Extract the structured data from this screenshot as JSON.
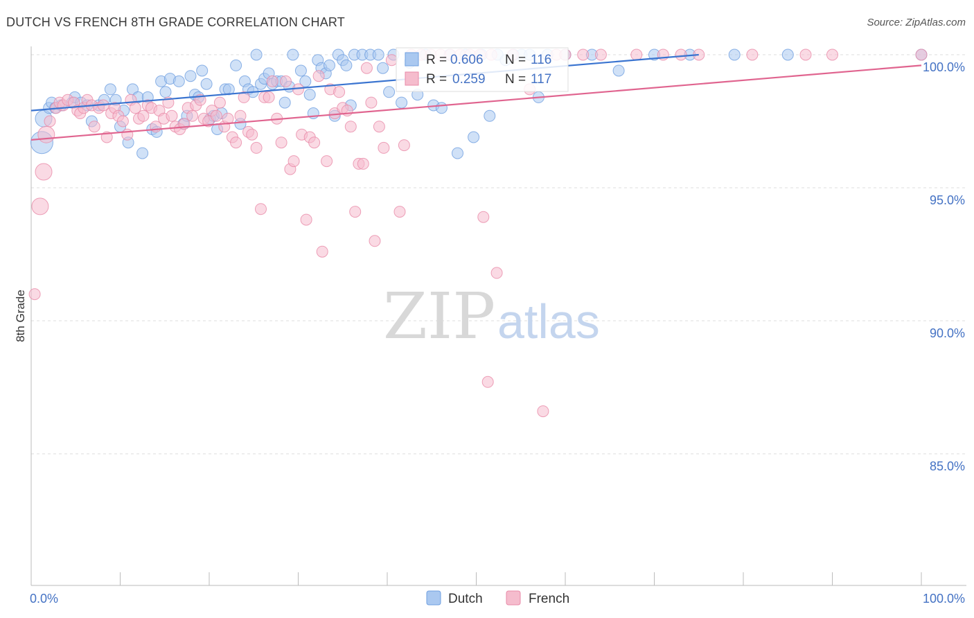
{
  "header": {
    "title": "DUTCH VS FRENCH 8TH GRADE CORRELATION CHART",
    "source": "Source: ZipAtlas.com"
  },
  "watermark": {
    "zip": "ZIP",
    "atlas": "atlas"
  },
  "legend_box": {
    "rows": [
      {
        "r_label": "R =",
        "r_value": "0.606",
        "n_label": "N =",
        "n_value": "116"
      },
      {
        "r_label": "R =",
        "r_value": "0.259",
        "n_label": "N =",
        "n_value": "117"
      }
    ]
  },
  "chart_data": {
    "type": "scatter",
    "title": "DUTCH VS FRENCH 8TH GRADE CORRELATION CHART",
    "xlabel": "",
    "ylabel": "8th Grade",
    "xlim": [
      0,
      100
    ],
    "ylim": [
      80,
      100.5
    ],
    "x_tick_labels": [
      "0.0%",
      "100.0%"
    ],
    "y_tick_labels": [
      {
        "value": 100,
        "label": "100.0%"
      },
      {
        "value": 95,
        "label": "95.0%"
      },
      {
        "value": 90,
        "label": "90.0%"
      },
      {
        "value": 85,
        "label": "85.0%"
      }
    ],
    "grid": true,
    "series": [
      {
        "name": "Dutch",
        "color": "#6f9fe0",
        "fill": "#aac8f0",
        "r": 0.606,
        "n": 116,
        "trend": {
          "x": [
            0,
            75
          ],
          "y": [
            97.9,
            100.0
          ]
        },
        "points": [
          [
            1.2,
            96.7,
            3
          ],
          [
            1.4,
            97.6,
            2
          ],
          [
            2,
            98.0,
            1
          ],
          [
            2.3,
            98.2,
            1
          ],
          [
            2.7,
            98.0,
            1
          ],
          [
            3.4,
            98.1,
            1
          ],
          [
            4.6,
            98.2,
            1
          ],
          [
            4.9,
            98.4,
            1
          ],
          [
            5.6,
            98.2,
            1
          ],
          [
            6.3,
            98.1,
            1
          ],
          [
            6.8,
            97.5,
            1
          ],
          [
            7.6,
            98.1,
            1
          ],
          [
            8.2,
            98.3,
            1
          ],
          [
            8.9,
            98.7,
            1
          ],
          [
            9.5,
            98.3,
            1
          ],
          [
            10,
            97.3,
            1
          ],
          [
            10.4,
            97.9,
            1
          ],
          [
            10.9,
            96.7,
            1
          ],
          [
            11.4,
            98.7,
            1
          ],
          [
            12,
            98.4,
            1
          ],
          [
            12.5,
            96.3,
            1
          ],
          [
            13.1,
            98.4,
            1
          ],
          [
            13.6,
            97.2,
            1
          ],
          [
            14.1,
            97.1,
            1
          ],
          [
            14.6,
            99.0,
            1
          ],
          [
            15.1,
            98.6,
            1
          ],
          [
            15.6,
            99.1,
            1
          ],
          [
            16.6,
            99.0,
            1
          ],
          [
            17.1,
            97.4,
            1
          ],
          [
            17.5,
            97.7,
            1
          ],
          [
            17.9,
            99.2,
            1
          ],
          [
            18.4,
            98.5,
            1
          ],
          [
            18.8,
            98.4,
            1
          ],
          [
            19.2,
            99.4,
            1
          ],
          [
            19.7,
            98.9,
            1
          ],
          [
            20.1,
            97.6,
            1
          ],
          [
            20.5,
            97.7,
            1
          ],
          [
            20.9,
            97.2,
            1
          ],
          [
            21.4,
            97.8,
            1
          ],
          [
            21.8,
            98.7,
            1
          ],
          [
            22.2,
            98.7,
            1
          ],
          [
            23,
            99.6,
            1
          ],
          [
            23.5,
            97.4,
            1
          ],
          [
            24,
            99.0,
            1
          ],
          [
            24.4,
            98.7,
            1
          ],
          [
            24.9,
            98.6,
            1
          ],
          [
            25.3,
            100.0,
            1
          ],
          [
            25.8,
            98.9,
            1
          ],
          [
            26.2,
            99.1,
            1
          ],
          [
            26.7,
            99.3,
            1
          ],
          [
            27.1,
            98.9,
            1
          ],
          [
            27.6,
            99.0,
            1
          ],
          [
            28.1,
            99.0,
            1
          ],
          [
            28.5,
            98.2,
            1
          ],
          [
            29,
            98.8,
            1
          ],
          [
            29.4,
            100.0,
            1
          ],
          [
            30.3,
            99.4,
            1
          ],
          [
            30.8,
            99.0,
            1
          ],
          [
            31.3,
            98.5,
            1
          ],
          [
            31.7,
            97.8,
            1
          ],
          [
            32.2,
            99.8,
            1
          ],
          [
            32.6,
            99.5,
            1
          ],
          [
            33.1,
            99.3,
            1
          ],
          [
            33.5,
            99.6,
            1
          ],
          [
            34.1,
            97.7,
            1
          ],
          [
            34.5,
            100.0,
            1
          ],
          [
            35,
            99.8,
            1
          ],
          [
            35.4,
            99.6,
            1
          ],
          [
            35.9,
            98.1,
            1
          ],
          [
            36.3,
            100.0,
            1
          ],
          [
            37.2,
            100.0,
            1
          ],
          [
            38.1,
            100.0,
            1
          ],
          [
            39,
            100.0,
            1
          ],
          [
            39.5,
            99.5,
            1
          ],
          [
            40.2,
            98.6,
            1
          ],
          [
            40.7,
            100.0,
            1
          ],
          [
            41.6,
            98.2,
            1
          ],
          [
            42.5,
            99.7,
            1
          ],
          [
            43.4,
            98.5,
            1
          ],
          [
            44.3,
            100.0,
            1
          ],
          [
            45.2,
            98.1,
            1
          ],
          [
            46.1,
            98.0,
            1
          ],
          [
            47,
            100.0,
            1
          ],
          [
            47.9,
            96.3,
            1
          ],
          [
            48.8,
            100.0,
            1
          ],
          [
            49.7,
            96.9,
            1
          ],
          [
            50.6,
            100.0,
            1
          ],
          [
            51.5,
            97.7,
            1
          ],
          [
            52.4,
            100.0,
            1
          ],
          [
            53.3,
            99.8,
            1
          ],
          [
            54.2,
            100.0,
            1
          ],
          [
            55.1,
            100.0,
            1
          ],
          [
            56,
            100.0,
            1
          ],
          [
            57,
            98.4,
            1
          ],
          [
            58,
            100.0,
            1
          ],
          [
            60,
            100.0,
            1
          ],
          [
            63,
            100.0,
            1
          ],
          [
            66,
            99.4,
            1
          ],
          [
            70,
            100.0,
            1
          ],
          [
            74,
            100.0,
            1
          ],
          [
            79,
            100.0,
            1
          ],
          [
            85,
            100.0,
            1
          ],
          [
            100,
            100.0,
            1
          ]
        ]
      },
      {
        "name": "French",
        "color": "#e98aa8",
        "fill": "#f5bccd",
        "r": 0.259,
        "n": 117,
        "trend": {
          "x": [
            0,
            100
          ],
          "y": [
            96.8,
            99.6
          ]
        },
        "points": [
          [
            0.4,
            91.0,
            1
          ],
          [
            1,
            94.3,
            2
          ],
          [
            1.4,
            95.6,
            2
          ],
          [
            1.7,
            97.0,
            2
          ],
          [
            2.1,
            97.5,
            1
          ],
          [
            2.8,
            98.0,
            1
          ],
          [
            3.2,
            98.2,
            1
          ],
          [
            3.6,
            98.1,
            1
          ],
          [
            4.1,
            98.3,
            1
          ],
          [
            4.8,
            98.2,
            1
          ],
          [
            5.2,
            97.9,
            1
          ],
          [
            5.5,
            97.8,
            1
          ],
          [
            5.9,
            98.0,
            1
          ],
          [
            6.3,
            98.3,
            1
          ],
          [
            6.8,
            98.1,
            1
          ],
          [
            7.1,
            97.3,
            1
          ],
          [
            7.6,
            98.0,
            1
          ],
          [
            8.1,
            98.1,
            1
          ],
          [
            8.5,
            96.9,
            1
          ],
          [
            9,
            97.8,
            1
          ],
          [
            9.4,
            98.0,
            1
          ],
          [
            9.8,
            97.7,
            1
          ],
          [
            10.3,
            97.5,
            1
          ],
          [
            10.8,
            97.0,
            1
          ],
          [
            11.2,
            98.3,
            1
          ],
          [
            11.7,
            98.0,
            1
          ],
          [
            12.1,
            97.6,
            1
          ],
          [
            12.6,
            97.7,
            1
          ],
          [
            13.1,
            98.1,
            1
          ],
          [
            13.5,
            98.0,
            1
          ],
          [
            14,
            97.3,
            1
          ],
          [
            14.4,
            97.9,
            1
          ],
          [
            14.9,
            97.6,
            1
          ],
          [
            15.4,
            98.2,
            1
          ],
          [
            15.8,
            97.7,
            1
          ],
          [
            16.2,
            97.3,
            1
          ],
          [
            16.7,
            97.2,
            1
          ],
          [
            17.2,
            97.4,
            1
          ],
          [
            17.6,
            98.0,
            1
          ],
          [
            18.1,
            97.7,
            1
          ],
          [
            18.5,
            98.1,
            1
          ],
          [
            19,
            98.3,
            1
          ],
          [
            19.4,
            97.6,
            1
          ],
          [
            19.9,
            97.5,
            1
          ],
          [
            20.3,
            97.9,
            1
          ],
          [
            20.8,
            97.7,
            1
          ],
          [
            21.2,
            98.2,
            1
          ],
          [
            21.7,
            97.3,
            1
          ],
          [
            22.1,
            97.6,
            1
          ],
          [
            22.6,
            96.9,
            1
          ],
          [
            23,
            96.7,
            1
          ],
          [
            23.5,
            97.7,
            1
          ],
          [
            23.9,
            98.4,
            1
          ],
          [
            24.4,
            97.1,
            1
          ],
          [
            24.8,
            97.0,
            1
          ],
          [
            25.3,
            96.5,
            1
          ],
          [
            25.8,
            94.2,
            1
          ],
          [
            26.2,
            98.4,
            1
          ],
          [
            26.7,
            98.4,
            1
          ],
          [
            27.1,
            99.0,
            1
          ],
          [
            27.6,
            97.6,
            1
          ],
          [
            28.1,
            96.7,
            1
          ],
          [
            28.6,
            99.0,
            1
          ],
          [
            29.1,
            95.7,
            1
          ],
          [
            29.5,
            96.0,
            1
          ],
          [
            30,
            98.7,
            1
          ],
          [
            30.4,
            97.0,
            1
          ],
          [
            30.9,
            93.8,
            1
          ],
          [
            31.3,
            96.9,
            1
          ],
          [
            31.8,
            96.7,
            1
          ],
          [
            32.3,
            99.2,
            1
          ],
          [
            32.7,
            92.6,
            1
          ],
          [
            33.2,
            96.0,
            1
          ],
          [
            33.6,
            98.7,
            1
          ],
          [
            34.1,
            97.8,
            1
          ],
          [
            34.6,
            98.6,
            1
          ],
          [
            35,
            98.0,
            1
          ],
          [
            35.5,
            97.9,
            1
          ],
          [
            35.9,
            97.3,
            1
          ],
          [
            36.4,
            94.1,
            1
          ],
          [
            36.8,
            95.9,
            1
          ],
          [
            37.3,
            95.9,
            1
          ],
          [
            37.7,
            99.5,
            1
          ],
          [
            38.2,
            98.2,
            1
          ],
          [
            38.6,
            93.0,
            1
          ],
          [
            39.1,
            97.3,
            1
          ],
          [
            39.6,
            96.5,
            1
          ],
          [
            40.5,
            99.8,
            1
          ],
          [
            41.4,
            94.1,
            1
          ],
          [
            41.9,
            96.6,
            1
          ],
          [
            42.7,
            100.0,
            1
          ],
          [
            43.8,
            100.0,
            1
          ],
          [
            44.9,
            100.0,
            1
          ],
          [
            46,
            100.0,
            1
          ],
          [
            47.1,
            100.0,
            1
          ],
          [
            48.2,
            100.0,
            1
          ],
          [
            49.3,
            100.0,
            1
          ],
          [
            50.4,
            100.0,
            1
          ],
          [
            50.8,
            93.9,
            1
          ],
          [
            51.3,
            87.7,
            1
          ],
          [
            51.7,
            100.0,
            1
          ],
          [
            52.3,
            91.8,
            1
          ],
          [
            54.1,
            100.0,
            1
          ],
          [
            56,
            98.7,
            1
          ],
          [
            57.5,
            86.6,
            1
          ],
          [
            59,
            100.0,
            1
          ],
          [
            60,
            100.0,
            1
          ],
          [
            62,
            100.0,
            1
          ],
          [
            64,
            100.0,
            1
          ],
          [
            68,
            100.0,
            1
          ],
          [
            71,
            100.0,
            1
          ],
          [
            73,
            100.0,
            1
          ],
          [
            75,
            100.0,
            1
          ],
          [
            81,
            100.0,
            1
          ],
          [
            87,
            100.0,
            1
          ],
          [
            90,
            100.0,
            1
          ],
          [
            100,
            100.0,
            1
          ]
        ]
      }
    ]
  }
}
